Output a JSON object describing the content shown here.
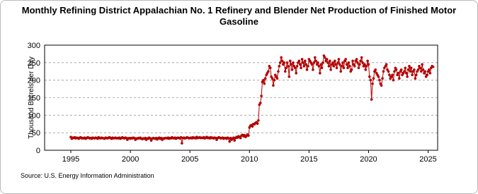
{
  "chart_data": {
    "type": "line",
    "title": "Monthly Refining District Appalachian No. 1 Refinery and Blender Net Production of Finished Motor Gasoline",
    "y_label": "Thousand Barrels per Day",
    "source": "Source: U.S. Energy Information Administration",
    "xlim": [
      1992.8,
      2025.8
    ],
    "xticks": [
      1995,
      2000,
      2005,
      2010,
      2015,
      2020,
      2025
    ],
    "ylim": [
      0,
      300
    ],
    "yticks": [
      0,
      50,
      100,
      150,
      200,
      250,
      300
    ],
    "grid": true,
    "x": [
      1995,
      1995.08,
      1995.17,
      1995.25,
      1995.33,
      1995.42,
      1995.5,
      1995.58,
      1995.67,
      1995.75,
      1995.83,
      1995.92,
      1996,
      1996.08,
      1996.17,
      1996.25,
      1996.33,
      1996.42,
      1996.5,
      1996.58,
      1996.67,
      1996.75,
      1996.83,
      1996.92,
      1997,
      1997.08,
      1997.17,
      1997.25,
      1997.33,
      1997.42,
      1997.5,
      1997.58,
      1997.67,
      1997.75,
      1997.83,
      1997.92,
      1998,
      1998.08,
      1998.17,
      1998.25,
      1998.33,
      1998.42,
      1998.5,
      1998.58,
      1998.67,
      1998.75,
      1998.83,
      1998.92,
      1999,
      1999.08,
      1999.17,
      1999.25,
      1999.33,
      1999.42,
      1999.5,
      1999.58,
      1999.67,
      1999.75,
      1999.83,
      1999.92,
      2000,
      2000.08,
      2000.17,
      2000.25,
      2000.33,
      2000.42,
      2000.5,
      2000.58,
      2000.67,
      2000.75,
      2000.83,
      2000.92,
      2001,
      2001.08,
      2001.17,
      2001.25,
      2001.33,
      2001.42,
      2001.5,
      2001.58,
      2001.67,
      2001.75,
      2001.83,
      2001.92,
      2002,
      2002.08,
      2002.17,
      2002.25,
      2002.33,
      2002.42,
      2002.5,
      2002.58,
      2002.67,
      2002.75,
      2002.83,
      2002.92,
      2003,
      2003.08,
      2003.17,
      2003.25,
      2003.33,
      2003.42,
      2003.5,
      2003.58,
      2003.67,
      2003.75,
      2003.83,
      2003.92,
      2004,
      2004.08,
      2004.17,
      2004.25,
      2004.33,
      2004.42,
      2004.5,
      2004.58,
      2004.67,
      2004.75,
      2004.83,
      2004.92,
      2005,
      2005.08,
      2005.17,
      2005.25,
      2005.33,
      2005.42,
      2005.5,
      2005.58,
      2005.67,
      2005.75,
      2005.83,
      2005.92,
      2006,
      2006.08,
      2006.17,
      2006.25,
      2006.33,
      2006.42,
      2006.5,
      2006.58,
      2006.67,
      2006.75,
      2006.83,
      2006.92,
      2007,
      2007.08,
      2007.17,
      2007.25,
      2007.33,
      2007.42,
      2007.5,
      2007.58,
      2007.67,
      2007.75,
      2007.83,
      2007.92,
      2008,
      2008.08,
      2008.17,
      2008.25,
      2008.33,
      2008.42,
      2008.5,
      2008.58,
      2008.67,
      2008.75,
      2008.83,
      2008.92,
      2009,
      2009.08,
      2009.17,
      2009.25,
      2009.33,
      2009.42,
      2009.5,
      2009.58,
      2009.67,
      2009.75,
      2009.83,
      2009.92,
      2010,
      2010.08,
      2010.17,
      2010.25,
      2010.33,
      2010.42,
      2010.5,
      2010.58,
      2010.67,
      2010.75,
      2010.83,
      2010.92,
      2011,
      2011.08,
      2011.17,
      2011.25,
      2011.33,
      2011.42,
      2011.5,
      2011.58,
      2011.67,
      2011.75,
      2011.83,
      2011.92,
      2012,
      2012.08,
      2012.17,
      2012.25,
      2012.33,
      2012.42,
      2012.5,
      2012.58,
      2012.67,
      2012.75,
      2012.83,
      2012.92,
      2013,
      2013.08,
      2013.17,
      2013.25,
      2013.33,
      2013.42,
      2013.5,
      2013.58,
      2013.67,
      2013.75,
      2013.83,
      2013.92,
      2014,
      2014.08,
      2014.17,
      2014.25,
      2014.33,
      2014.42,
      2014.5,
      2014.58,
      2014.67,
      2014.75,
      2014.83,
      2014.92,
      2015,
      2015.08,
      2015.17,
      2015.25,
      2015.33,
      2015.42,
      2015.5,
      2015.58,
      2015.67,
      2015.75,
      2015.83,
      2015.92,
      2016,
      2016.08,
      2016.17,
      2016.25,
      2016.33,
      2016.42,
      2016.5,
      2016.58,
      2016.67,
      2016.75,
      2016.83,
      2016.92,
      2017,
      2017.08,
      2017.17,
      2017.25,
      2017.33,
      2017.42,
      2017.5,
      2017.58,
      2017.67,
      2017.75,
      2017.83,
      2017.92,
      2018,
      2018.08,
      2018.17,
      2018.25,
      2018.33,
      2018.42,
      2018.5,
      2018.58,
      2018.67,
      2018.75,
      2018.83,
      2018.92,
      2019,
      2019.08,
      2019.17,
      2019.25,
      2019.33,
      2019.42,
      2019.5,
      2019.58,
      2019.67,
      2019.75,
      2019.83,
      2019.92,
      2020,
      2020.08,
      2020.17,
      2020.25,
      2020.33,
      2020.42,
      2020.5,
      2020.58,
      2020.67,
      2020.75,
      2020.83,
      2020.92,
      2021,
      2021.08,
      2021.17,
      2021.25,
      2021.33,
      2021.42,
      2021.5,
      2021.58,
      2021.67,
      2021.75,
      2021.83,
      2021.92,
      2022,
      2022.08,
      2022.17,
      2022.25,
      2022.33,
      2022.42,
      2022.5,
      2022.58,
      2022.67,
      2022.75,
      2022.83,
      2022.92,
      2023,
      2023.08,
      2023.17,
      2023.25,
      2023.33,
      2023.42,
      2023.5,
      2023.58,
      2023.67,
      2023.75,
      2023.83,
      2023.92,
      2024,
      2024.08,
      2024.17,
      2024.25,
      2024.33,
      2024.42,
      2024.5,
      2024.58,
      2024.67,
      2024.75,
      2024.83,
      2024.92,
      2025,
      2025.08,
      2025.17,
      2025.25,
      2025.33,
      2025.42
    ],
    "series": [
      {
        "color": "#b40000",
        "values": [
          38,
          33,
          36,
          35,
          37,
          34,
          36,
          35,
          33,
          36,
          37,
          34,
          35,
          34,
          36,
          33,
          35,
          37,
          36,
          34,
          35,
          33,
          36,
          35,
          34,
          36,
          35,
          33,
          37,
          35,
          34,
          36,
          35,
          34,
          33,
          36,
          35,
          34,
          36,
          37,
          35,
          33,
          36,
          34,
          35,
          36,
          34,
          35,
          34,
          36,
          33,
          35,
          37,
          35,
          34,
          36,
          35,
          30,
          34,
          35,
          33,
          35,
          34,
          36,
          35,
          30,
          34,
          33,
          35,
          34,
          36,
          33,
          32,
          34,
          33,
          35,
          30,
          34,
          33,
          36,
          34,
          28,
          33,
          35,
          34,
          33,
          35,
          31,
          34,
          36,
          33,
          35,
          30,
          34,
          33,
          35,
          35,
          34,
          36,
          33,
          35,
          34,
          37,
          35,
          34,
          36,
          33,
          35,
          36,
          35,
          34,
          37,
          20,
          35,
          36,
          34,
          35,
          37,
          36,
          34,
          35,
          36,
          34,
          37,
          35,
          36,
          34,
          38,
          35,
          36,
          37,
          35,
          36,
          35,
          37,
          34,
          36,
          38,
          35,
          36,
          34,
          37,
          35,
          36,
          34,
          36,
          35,
          30,
          35,
          37,
          36,
          34,
          35,
          36,
          33,
          35,
          35,
          33,
          36,
          34,
          25,
          35,
          30,
          33,
          36,
          28,
          35,
          38,
          36,
          40,
          38,
          35,
          42,
          44,
          40,
          43,
          38,
          41,
          45,
          42,
          65,
          70,
          72,
          68,
          75,
          74,
          78,
          80,
          76,
          85,
          130,
          135,
          155,
          195,
          200,
          190,
          205,
          215,
          220,
          225,
          240,
          235,
          210,
          205,
          185,
          200,
          215,
          210,
          205,
          225,
          240,
          250,
          265,
          255,
          245,
          250,
          225,
          235,
          250,
          240,
          210,
          255,
          245,
          230,
          250,
          240,
          235,
          220,
          240,
          250,
          255,
          245,
          235,
          260,
          250,
          240,
          255,
          245,
          230,
          240,
          260,
          255,
          250,
          245,
          230,
          250,
          265,
          255,
          245,
          250,
          240,
          220,
          245,
          235,
          250,
          270,
          265,
          255,
          260,
          250,
          240,
          255,
          230,
          245,
          250,
          240,
          255,
          245,
          235,
          250,
          260,
          245,
          225,
          240,
          250,
          235,
          255,
          260,
          245,
          235,
          250,
          240,
          225,
          230,
          255,
          245,
          240,
          255,
          260,
          250,
          235,
          245,
          255,
          265,
          250,
          240,
          245,
          230,
          240,
          255,
          245,
          210,
          200,
          145,
          190,
          205,
          225,
          230,
          220,
          215,
          210,
          200,
          190,
          185,
          205,
          225,
          235,
          240,
          245,
          230,
          225,
          215,
          205,
          210,
          215,
          200,
          225,
          235,
          230,
          215,
          220,
          205,
          225,
          230,
          215,
          220,
          225,
          235,
          220,
          210,
          230,
          240,
          225,
          235,
          215,
          225,
          230,
          205,
          215,
          225,
          230,
          240,
          235,
          225,
          245,
          230,
          220,
          225,
          210,
          215,
          225,
          230,
          220,
          235,
          240,
          238
        ]
      }
    ]
  }
}
